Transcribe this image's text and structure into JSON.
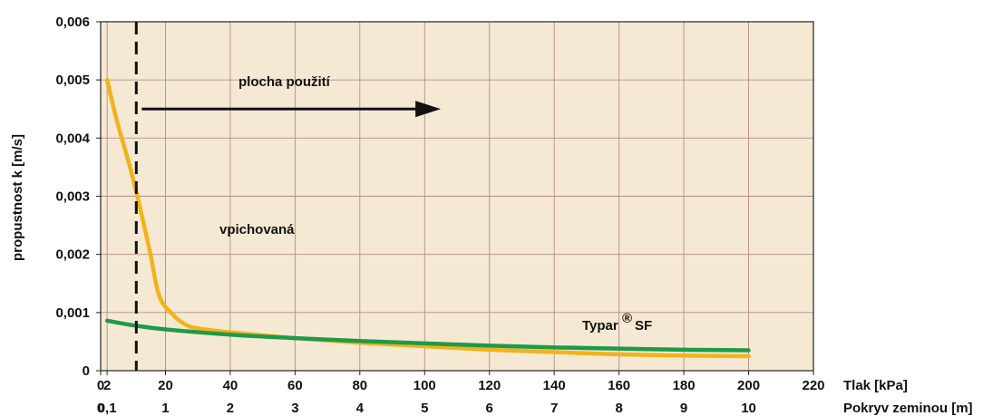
{
  "chart_data": {
    "type": "line",
    "ylabel": "propustnost k [m/s]",
    "xlabel": "Tlak [kPa]",
    "x2label": "Pokryv zeminou [m]",
    "xlim": [
      0,
      220
    ],
    "ylim": [
      0,
      0.006
    ],
    "x_ticks": [
      0,
      2,
      20,
      40,
      60,
      80,
      100,
      120,
      140,
      160,
      180,
      200,
      220
    ],
    "x_tick_labels": [
      "0",
      "2",
      "20",
      "40",
      "60",
      "80",
      "100",
      "120",
      "140",
      "160",
      "180",
      "200",
      "220"
    ],
    "x2_tick_labels": [
      "0",
      "0,1",
      "1",
      "2",
      "3",
      "4",
      "5",
      "6",
      "7",
      "8",
      "9",
      "10"
    ],
    "y_ticks": [
      0,
      0.001,
      0.002,
      0.003,
      0.004,
      0.005,
      0.006
    ],
    "y_tick_labels": [
      "0",
      "0,001",
      "0,002",
      "0,003",
      "0,004",
      "0,005",
      "0,006"
    ],
    "grid": true,
    "background": "#f5e9d3",
    "series": [
      {
        "name": "vpichovaná",
        "color": "#f2b21b",
        "x": [
          2,
          5,
          10,
          15,
          18,
          22,
          26,
          30,
          40,
          60,
          80,
          100,
          120,
          140,
          160,
          180,
          200
        ],
        "y": [
          0.005,
          0.0043,
          0.0033,
          0.0021,
          0.0013,
          0.00098,
          0.0008,
          0.00073,
          0.00066,
          0.00056,
          0.00048,
          0.00042,
          0.00036,
          0.00032,
          0.00028,
          0.00026,
          0.00025
        ]
      },
      {
        "name": "Typar® SF",
        "color": "#1e9a48",
        "x": [
          2,
          10,
          20,
          40,
          60,
          80,
          100,
          120,
          140,
          160,
          180,
          200
        ],
        "y": [
          0.00086,
          0.00078,
          0.00071,
          0.00062,
          0.00056,
          0.00051,
          0.00047,
          0.00043,
          0.0004,
          0.00038,
          0.00036,
          0.00035
        ]
      }
    ],
    "annotations": {
      "vline_x": 11,
      "range_label": "plocha použití",
      "arrow_from_x": 11,
      "arrow_to_x": 105,
      "arrow_y": 0.0045,
      "label_vpichovana": "vpichovaná",
      "label_typar": "Typar",
      "label_typar_reg": "®",
      "label_typar_sf": "SF"
    }
  }
}
